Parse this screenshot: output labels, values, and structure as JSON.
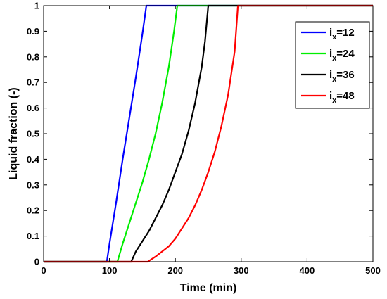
{
  "chart_data": {
    "type": "line",
    "xlabel": "Time (min)",
    "ylabel": "Liquid fraction (-)",
    "xlim": [
      0,
      500
    ],
    "ylim": [
      0,
      1
    ],
    "xticks": [
      0,
      100,
      200,
      300,
      400,
      500
    ],
    "yticks": [
      0,
      0.1,
      0.2,
      0.3,
      0.4,
      0.5,
      0.6,
      0.7,
      0.8,
      0.9,
      1
    ],
    "xtick_labels": [
      "0",
      "100",
      "200",
      "300",
      "400",
      "500"
    ],
    "ytick_labels": [
      "0",
      "0.1",
      "0.2",
      "0.3",
      "0.4",
      "0.5",
      "0.6",
      "0.7",
      "0.8",
      "0.9",
      "1"
    ],
    "grid": false,
    "legend_position": "top-right",
    "series": [
      {
        "name": "i_x=12",
        "legend_main": "i",
        "legend_sub": "x",
        "legend_rest": "=12",
        "color": "#0000ff",
        "x": [
          0,
          96,
          100,
          110,
          120,
          130,
          140,
          150,
          156,
          500
        ],
        "y": [
          0,
          0,
          0.07,
          0.23,
          0.4,
          0.56,
          0.72,
          0.89,
          1.0,
          1.0
        ]
      },
      {
        "name": "i_x=24",
        "legend_main": "i",
        "legend_sub": "x",
        "legend_rest": "=24",
        "color": "#00ee00",
        "x": [
          0,
          112,
          120,
          130,
          140,
          150,
          160,
          170,
          180,
          190,
          198,
          203,
          500
        ],
        "y": [
          0,
          0,
          0.07,
          0.15,
          0.23,
          0.31,
          0.4,
          0.5,
          0.62,
          0.76,
          0.9,
          1.0,
          1.0
        ]
      },
      {
        "name": "i_x=36",
        "legend_main": "i",
        "legend_sub": "x",
        "legend_rest": "=36",
        "color": "#000000",
        "x": [
          0,
          133,
          140,
          150,
          160,
          170,
          180,
          190,
          200,
          210,
          220,
          230,
          240,
          245,
          250,
          500
        ],
        "y": [
          0,
          0,
          0.04,
          0.08,
          0.12,
          0.17,
          0.22,
          0.28,
          0.35,
          0.42,
          0.51,
          0.62,
          0.76,
          0.86,
          1.0,
          1.0
        ]
      },
      {
        "name": "i_x=48",
        "legend_main": "i",
        "legend_sub": "x",
        "legend_rest": "=48",
        "color": "#ff0000",
        "x": [
          0,
          158,
          170,
          180,
          190,
          200,
          210,
          220,
          230,
          240,
          250,
          260,
          270,
          280,
          290,
          295,
          500
        ],
        "y": [
          0,
          0,
          0.02,
          0.04,
          0.06,
          0.09,
          0.13,
          0.17,
          0.22,
          0.28,
          0.35,
          0.43,
          0.53,
          0.65,
          0.82,
          1.0,
          1.0
        ]
      }
    ]
  }
}
